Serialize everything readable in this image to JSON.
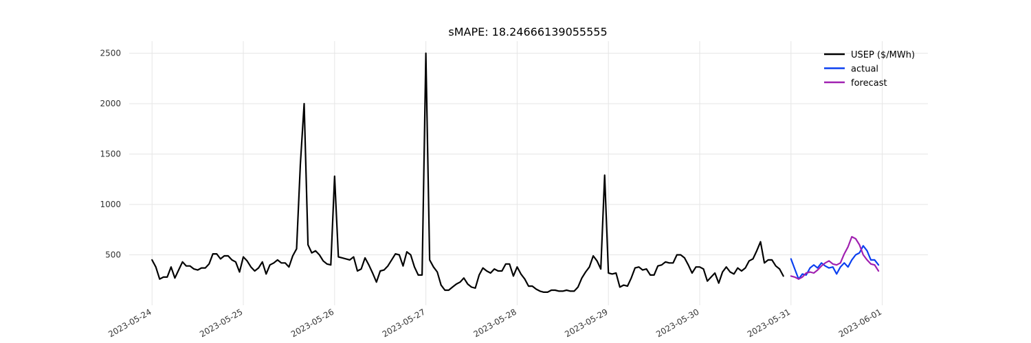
{
  "chart_data": {
    "type": "line",
    "title": "sMAPE: 18.24666139055555",
    "xlabel": "",
    "ylabel": "",
    "x_axis": "datetime",
    "xlim": [
      "2023-05-23 18:00",
      "2023-06-01 12:00"
    ],
    "ylim": [
      0,
      2620
    ],
    "yticks": [
      500,
      1000,
      1500,
      2000,
      2500
    ],
    "xticks": [
      "2023-05-24",
      "2023-05-25",
      "2023-05-26",
      "2023-05-27",
      "2023-05-28",
      "2023-05-29",
      "2023-05-30",
      "2023-05-31",
      "2023-06-01"
    ],
    "grid": true,
    "legend_position": "top-right",
    "series": [
      {
        "name": "USEP ($/MWh)",
        "color": "#000000",
        "start": "2023-05-24 00:00",
        "interval_hours": 1,
        "values": [
          450,
          380,
          260,
          280,
          280,
          380,
          270,
          350,
          430,
          390,
          390,
          360,
          350,
          370,
          370,
          410,
          510,
          510,
          460,
          490,
          490,
          450,
          430,
          330,
          480,
          440,
          380,
          340,
          370,
          430,
          310,
          400,
          420,
          450,
          420,
          420,
          380,
          490,
          560,
          1400,
          2000,
          600,
          520,
          540,
          500,
          440,
          410,
          400,
          1280,
          480,
          470,
          460,
          450,
          480,
          340,
          360,
          470,
          400,
          320,
          230,
          340,
          350,
          390,
          450,
          510,
          500,
          390,
          530,
          500,
          380,
          300,
          300,
          2500,
          450,
          380,
          330,
          200,
          150,
          150,
          180,
          210,
          230,
          270,
          210,
          180,
          170,
          300,
          370,
          340,
          320,
          360,
          340,
          340,
          410,
          410,
          290,
          380,
          310,
          260,
          190,
          190,
          160,
          140,
          130,
          130,
          150,
          150,
          140,
          140,
          150,
          140,
          140,
          180,
          270,
          330,
          380,
          490,
          440,
          360,
          1290,
          320,
          310,
          320,
          180,
          200,
          190,
          270,
          370,
          380,
          350,
          360,
          300,
          300,
          390,
          400,
          430,
          420,
          420,
          500,
          500,
          470,
          400,
          320,
          380,
          380,
          360,
          240,
          280,
          320,
          220,
          330,
          380,
          330,
          310,
          370,
          340,
          370,
          440,
          460,
          540,
          630,
          420,
          450,
          450,
          390,
          360,
          290
        ]
      },
      {
        "name": "actual",
        "color": "#0a3ff0",
        "start": "2023-05-31 00:00",
        "interval_hours": 1,
        "values": [
          460,
          360,
          260,
          310,
          300,
          370,
          400,
          370,
          420,
          390,
          370,
          380,
          310,
          380,
          420,
          380,
          450,
          500,
          520,
          590,
          540,
          450,
          450,
          400
        ]
      },
      {
        "name": "forecast",
        "color": "#a020b0",
        "start": "2023-05-31 00:00",
        "interval_hours": 1,
        "values": [
          290,
          280,
          260,
          280,
          320,
          330,
          320,
          350,
          390,
          420,
          440,
          410,
          400,
          420,
          510,
          580,
          680,
          660,
          600,
          500,
          450,
          410,
          400,
          340
        ]
      }
    ]
  }
}
